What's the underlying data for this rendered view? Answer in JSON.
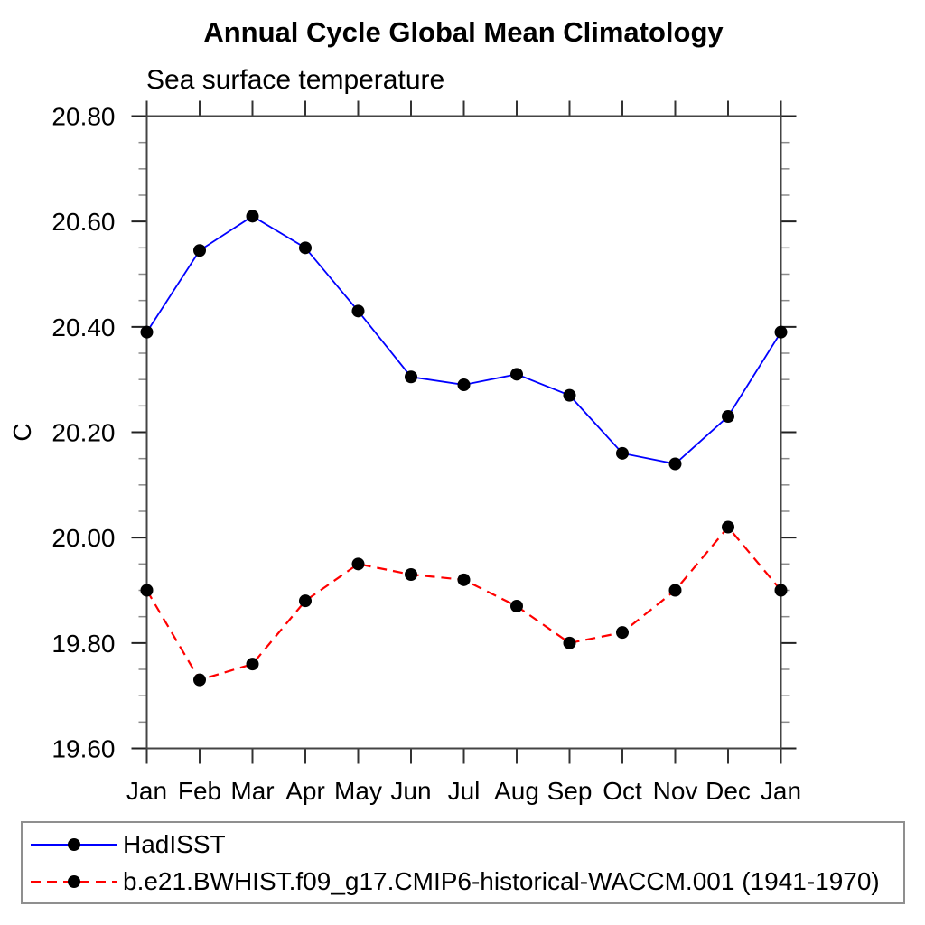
{
  "chart_data": {
    "type": "line",
    "title": "Annual Cycle Global Mean Climatology",
    "subtitle": "Sea surface temperature",
    "ylabel": "C",
    "xlabel": "",
    "categories": [
      "Jan",
      "Feb",
      "Mar",
      "Apr",
      "May",
      "Jun",
      "Jul",
      "Aug",
      "Sep",
      "Oct",
      "Nov",
      "Dec",
      "Jan"
    ],
    "ylim": [
      19.6,
      20.8
    ],
    "y_major_step": 0.2,
    "y_minor_step": 0.05,
    "y_tick_labels": [
      "19.60",
      "19.80",
      "20.00",
      "20.20",
      "20.40",
      "20.60",
      "20.80"
    ],
    "grid": false,
    "legend_position": "bottom",
    "axis_color": "#444444",
    "marker_color": "#000000",
    "series": [
      {
        "name": "HadISST",
        "color": "#0000ff",
        "line_style": "solid",
        "marker": "circle",
        "values": [
          20.39,
          20.545,
          20.61,
          20.55,
          20.43,
          20.305,
          20.29,
          20.31,
          20.27,
          20.16,
          20.14,
          20.23,
          20.39
        ]
      },
      {
        "name": "b.e21.BWHIST.f09_g17.CMIP6-historical-WACCM.001 (1941-1970)",
        "color": "#ff0000",
        "line_style": "dashed",
        "marker": "circle",
        "values": [
          19.9,
          19.73,
          19.76,
          19.88,
          19.95,
          19.93,
          19.92,
          19.87,
          19.8,
          19.82,
          19.9,
          20.02,
          19.9
        ]
      }
    ]
  }
}
